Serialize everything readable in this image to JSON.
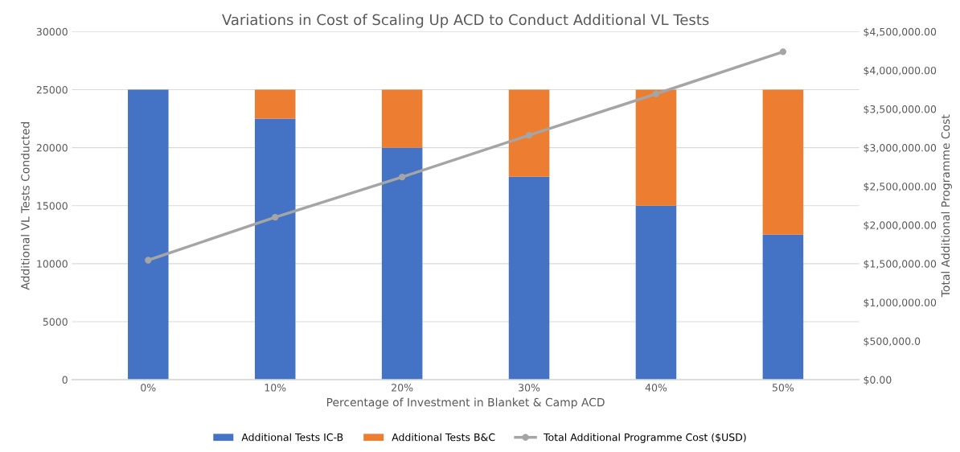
{
  "chart_data": {
    "type": "bar",
    "stacked": true,
    "title": "Variations in Cost of Scaling Up ACD to Conduct Additional VL Tests",
    "xlabel": "Percentage of Investment in Blanket & Camp ACD",
    "ylabel": "Additional VL Tests Conducted",
    "y2label": "Total Additional Programme Cost",
    "categories": [
      "0%",
      "10%",
      "20%",
      "30%",
      "40%",
      "50%"
    ],
    "series": [
      {
        "name": "Additional Tests IC-B",
        "color": "#4472c4",
        "values": [
          25000,
          22500,
          20000,
          17500,
          15000,
          12500
        ]
      },
      {
        "name": "Additional Tests B&C",
        "color": "#ed7d31",
        "values": [
          0,
          2500,
          5000,
          7500,
          10000,
          12500
        ]
      },
      {
        "name": "Total Additional Programme Cost ($USD)",
        "type": "line",
        "axis": "y2",
        "color": "#a5a5a5",
        "marker": "circle",
        "values": [
          1545000,
          2100000,
          2620000,
          3160000,
          3695000,
          4240000
        ]
      }
    ],
    "ylim": [
      0,
      30000
    ],
    "yticks": [
      0,
      5000,
      10000,
      15000,
      20000,
      25000,
      30000
    ],
    "y2lim": [
      0,
      4500000
    ],
    "y2ticks": [
      {
        "value": 0,
        "label": "$0.00"
      },
      {
        "value": 500000,
        "label": "$500,000.0"
      },
      {
        "value": 1000000,
        "label": "$1,000,000.00"
      },
      {
        "value": 1500000,
        "label": "$1,500,000.00"
      },
      {
        "value": 2000000,
        "label": "$2,000,000.00"
      },
      {
        "value": 2500000,
        "label": "$2,500,000.00"
      },
      {
        "value": 3000000,
        "label": "$3,000,000.00"
      },
      {
        "value": 3500000,
        "label": "$3,500,000.00"
      },
      {
        "value": 4000000,
        "label": "$4,000,000.00"
      },
      {
        "value": 4500000,
        "label": "$4,500,000.00"
      }
    ],
    "grid": "y",
    "legend": "bottom"
  }
}
